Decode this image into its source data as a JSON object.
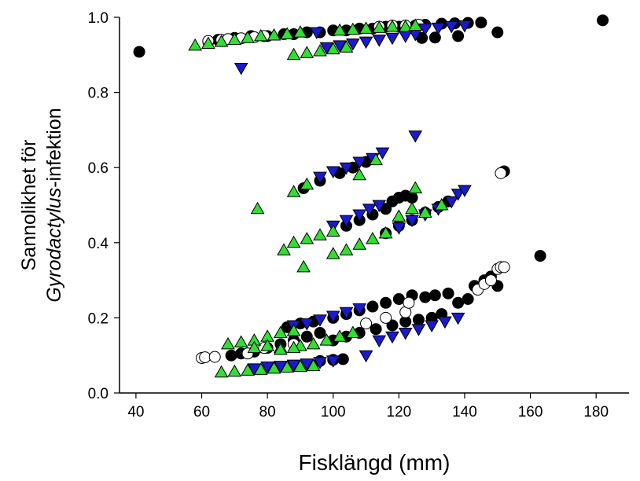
{
  "chart_data": {
    "type": "scatter",
    "xlabel": "Fisklängd (mm)",
    "ylabel_line1": "Sannolikhet för",
    "ylabel_line2_italic": "Gyrodactylus",
    "ylabel_line2_rest": "-infektion",
    "xlim": [
      35,
      190
    ],
    "ylim": [
      0,
      1.0
    ],
    "x_ticks": [
      40,
      60,
      80,
      100,
      120,
      140,
      160,
      180
    ],
    "y_ticks": [
      0.0,
      0.2,
      0.4,
      0.6,
      0.8,
      1.0
    ],
    "x_tick_labels": [
      "40",
      "60",
      "80",
      "100",
      "120",
      "140",
      "160",
      "180"
    ],
    "y_tick_labels": [
      "0.0",
      "0.2",
      "0.4",
      "0.6",
      "0.8",
      "1.0"
    ],
    "grid": false,
    "legend": "none",
    "series": [
      {
        "marker": "circle",
        "fill": "#000000",
        "points": [
          [
            41,
            0.908
          ],
          [
            182,
            0.992
          ],
          [
            163,
            0.365
          ],
          [
            150,
            0.285
          ],
          [
            152,
            0.59
          ],
          [
            150,
            0.96
          ],
          [
            62,
            0.935
          ],
          [
            65,
            0.94
          ],
          [
            70,
            0.945
          ],
          [
            75,
            0.95
          ],
          [
            80,
            0.95
          ],
          [
            85,
            0.955
          ],
          [
            88,
            0.955
          ],
          [
            92,
            0.96
          ],
          [
            96,
            0.96
          ],
          [
            100,
            0.965
          ],
          [
            104,
            0.965
          ],
          [
            108,
            0.97
          ],
          [
            112,
            0.97
          ],
          [
            116,
            0.975
          ],
          [
            120,
            0.975
          ],
          [
            125,
            0.978
          ],
          [
            128,
            0.98
          ],
          [
            133,
            0.983
          ],
          [
            137,
            0.984
          ],
          [
            141,
            0.985
          ],
          [
            145,
            0.986
          ],
          [
            127,
            0.945
          ],
          [
            131,
            0.946
          ],
          [
            138,
            0.95
          ],
          [
            91,
            0.545
          ],
          [
            96,
            0.565
          ],
          [
            102,
            0.585
          ],
          [
            106,
            0.6
          ],
          [
            110,
            0.615
          ],
          [
            104,
            0.445
          ],
          [
            108,
            0.46
          ],
          [
            112,
            0.475
          ],
          [
            116,
            0.49
          ],
          [
            118,
            0.51
          ],
          [
            120,
            0.52
          ],
          [
            122,
            0.525
          ],
          [
            124,
            0.52
          ],
          [
            116,
            0.425
          ],
          [
            120,
            0.445
          ],
          [
            124,
            0.46
          ],
          [
            128,
            0.48
          ],
          [
            132,
            0.495
          ],
          [
            135,
            0.51
          ],
          [
            69,
            0.1
          ],
          [
            72,
            0.105
          ],
          [
            76,
            0.11
          ],
          [
            80,
            0.12
          ],
          [
            84,
            0.13
          ],
          [
            88,
            0.14
          ],
          [
            92,
            0.15
          ],
          [
            96,
            0.16
          ],
          [
            86,
            0.175
          ],
          [
            90,
            0.185
          ],
          [
            94,
            0.19
          ],
          [
            100,
            0.2
          ],
          [
            104,
            0.21
          ],
          [
            108,
            0.22
          ],
          [
            112,
            0.23
          ],
          [
            116,
            0.24
          ],
          [
            120,
            0.25
          ],
          [
            124,
            0.26
          ],
          [
            128,
            0.255
          ],
          [
            131,
            0.26
          ],
          [
            135,
            0.265
          ],
          [
            143,
            0.285
          ],
          [
            146,
            0.3
          ],
          [
            148,
            0.31
          ],
          [
            100,
            0.14
          ],
          [
            104,
            0.15
          ],
          [
            108,
            0.16
          ],
          [
            113,
            0.17
          ],
          [
            118,
            0.18
          ],
          [
            122,
            0.19
          ],
          [
            126,
            0.195
          ],
          [
            130,
            0.2
          ],
          [
            133,
            0.21
          ],
          [
            138,
            0.24
          ],
          [
            141,
            0.25
          ],
          [
            96,
            0.085
          ],
          [
            100,
            0.088
          ],
          [
            103,
            0.09
          ]
        ]
      },
      {
        "marker": "circle",
        "fill": "#ffffff",
        "points": [
          [
            60,
            0.093
          ],
          [
            61,
            0.095
          ],
          [
            64,
            0.096
          ],
          [
            74,
            0.105
          ],
          [
            79,
            0.12
          ],
          [
            88,
            0.13
          ],
          [
            110,
            0.185
          ],
          [
            116,
            0.2
          ],
          [
            122,
            0.215
          ],
          [
            123,
            0.24
          ],
          [
            144,
            0.275
          ],
          [
            146,
            0.29
          ],
          [
            148,
            0.3
          ],
          [
            150,
            0.33
          ],
          [
            151,
            0.335
          ],
          [
            152,
            0.335
          ],
          [
            151,
            0.585
          ],
          [
            62,
            0.937
          ],
          [
            66,
            0.94
          ],
          [
            68,
            0.942
          ],
          [
            72,
            0.944
          ],
          [
            76,
            0.947
          ],
          [
            79,
            0.95
          ],
          [
            114,
            0.975
          ],
          [
            118,
            0.978
          ],
          [
            122,
            0.978
          ],
          [
            126,
            0.98
          ]
        ]
      },
      {
        "marker": "triangle-down",
        "fill": "#1a1acc",
        "points": [
          [
            72,
            0.865
          ],
          [
            95,
            0.96
          ],
          [
            125,
            0.685
          ],
          [
            110,
            0.1
          ],
          [
            98,
            0.92
          ],
          [
            102,
            0.925
          ],
          [
            106,
            0.93
          ],
          [
            110,
            0.935
          ],
          [
            114,
            0.94
          ],
          [
            118,
            0.945
          ],
          [
            122,
            0.95
          ],
          [
            125,
            0.955
          ],
          [
            128,
            0.97
          ],
          [
            132,
            0.972
          ],
          [
            136,
            0.976
          ],
          [
            140,
            0.978
          ],
          [
            96,
            0.575
          ],
          [
            100,
            0.59
          ],
          [
            104,
            0.6
          ],
          [
            108,
            0.615
          ],
          [
            112,
            0.625
          ],
          [
            115,
            0.64
          ],
          [
            100,
            0.445
          ],
          [
            104,
            0.46
          ],
          [
            108,
            0.475
          ],
          [
            111,
            0.49
          ],
          [
            114,
            0.5
          ],
          [
            120,
            0.44
          ],
          [
            124,
            0.46
          ],
          [
            128,
            0.475
          ],
          [
            132,
            0.49
          ],
          [
            136,
            0.51
          ],
          [
            138,
            0.53
          ],
          [
            140,
            0.54
          ],
          [
            88,
            0.18
          ],
          [
            92,
            0.185
          ],
          [
            96,
            0.195
          ],
          [
            100,
            0.205
          ],
          [
            104,
            0.215
          ],
          [
            108,
            0.225
          ],
          [
            114,
            0.14
          ],
          [
            118,
            0.15
          ],
          [
            122,
            0.16
          ],
          [
            126,
            0.17
          ],
          [
            130,
            0.18
          ],
          [
            134,
            0.19
          ],
          [
            138,
            0.2
          ],
          [
            76,
            0.065
          ],
          [
            80,
            0.07
          ],
          [
            84,
            0.072
          ],
          [
            88,
            0.075
          ],
          [
            92,
            0.078
          ],
          [
            96,
            0.082
          ],
          [
            100,
            0.086
          ]
        ]
      },
      {
        "marker": "triangle-up",
        "fill": "#33dd33",
        "points": [
          [
            58,
            0.925
          ],
          [
            77,
            0.49
          ],
          [
            91,
            0.335
          ],
          [
            85,
            0.38
          ],
          [
            62,
            0.93
          ],
          [
            66,
            0.935
          ],
          [
            70,
            0.94
          ],
          [
            74,
            0.945
          ],
          [
            78,
            0.95
          ],
          [
            82,
            0.952
          ],
          [
            86,
            0.955
          ],
          [
            90,
            0.96
          ],
          [
            88,
            0.9
          ],
          [
            92,
            0.905
          ],
          [
            96,
            0.91
          ],
          [
            100,
            0.915
          ],
          [
            104,
            0.92
          ],
          [
            102,
            0.965
          ],
          [
            106,
            0.967
          ],
          [
            110,
            0.97
          ],
          [
            114,
            0.972
          ],
          [
            118,
            0.975
          ],
          [
            122,
            0.975
          ],
          [
            125,
            0.978
          ],
          [
            88,
            0.535
          ],
          [
            92,
            0.555
          ],
          [
            108,
            0.58
          ],
          [
            113,
            0.62
          ],
          [
            88,
            0.4
          ],
          [
            92,
            0.41
          ],
          [
            96,
            0.42
          ],
          [
            100,
            0.43
          ],
          [
            100,
            0.37
          ],
          [
            104,
            0.38
          ],
          [
            108,
            0.395
          ],
          [
            112,
            0.41
          ],
          [
            116,
            0.425
          ],
          [
            120,
            0.47
          ],
          [
            124,
            0.49
          ],
          [
            125,
            0.545
          ],
          [
            128,
            0.48
          ],
          [
            133,
            0.5
          ],
          [
            68,
            0.13
          ],
          [
            72,
            0.135
          ],
          [
            76,
            0.14
          ],
          [
            80,
            0.15
          ],
          [
            84,
            0.16
          ],
          [
            88,
            0.165
          ],
          [
            76,
            0.12
          ],
          [
            80,
            0.125
          ],
          [
            84,
            0.12
          ],
          [
            90,
            0.125
          ],
          [
            94,
            0.13
          ],
          [
            98,
            0.14
          ],
          [
            102,
            0.15
          ],
          [
            106,
            0.16
          ],
          [
            84,
            0.115
          ],
          [
            88,
            0.12
          ],
          [
            66,
            0.055
          ],
          [
            70,
            0.057
          ],
          [
            74,
            0.06
          ],
          [
            78,
            0.062
          ],
          [
            82,
            0.065
          ],
          [
            86,
            0.068
          ],
          [
            90,
            0.07
          ],
          [
            94,
            0.072
          ]
        ]
      }
    ]
  }
}
